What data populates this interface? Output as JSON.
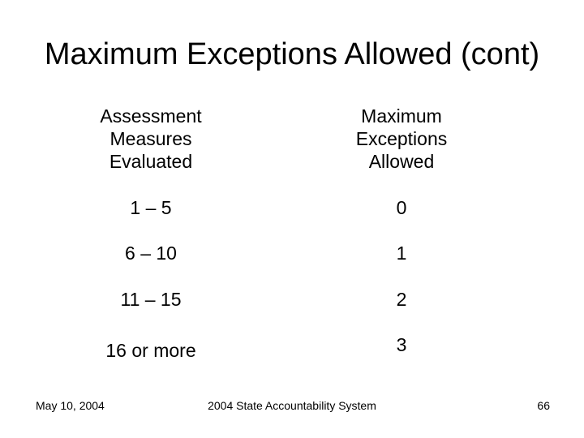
{
  "slide": {
    "title": "Maximum Exceptions Allowed (cont)",
    "table": {
      "col1_header": "Assessment\nMeasures\nEvaluated",
      "col2_header": "Maximum\nExceptions\nAllowed",
      "rows": [
        {
          "measures": "1 – 5",
          "exceptions": "0"
        },
        {
          "measures": "6 – 10",
          "exceptions": "1"
        },
        {
          "measures": "11 – 15",
          "exceptions": "2"
        },
        {
          "measures": "16 or more",
          "exceptions": "3"
        }
      ]
    },
    "footer": {
      "date": "May 10, 2004",
      "center": "2004 State Accountability System",
      "slide_number": "66"
    }
  },
  "colors": {
    "background": "#ffffff",
    "text": "#000000"
  }
}
